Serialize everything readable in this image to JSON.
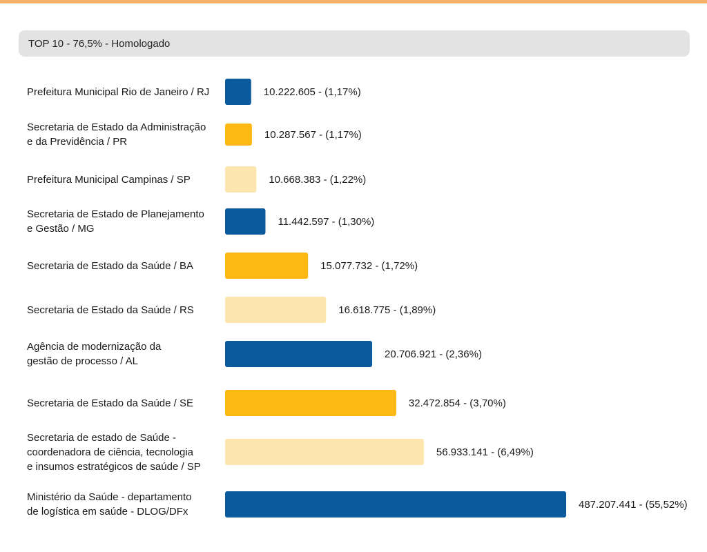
{
  "header": {
    "title": "TOP 10 - 76,5% - Homologado"
  },
  "colors": {
    "blue": "#0b5a9e",
    "gold": "#fdb813",
    "pale": "#fde6ae",
    "accent_rule": "#f6b26b"
  },
  "chart_data": {
    "type": "bar",
    "orientation": "horizontal",
    "title": "TOP 10 - 76,5% - Homologado",
    "categories": [
      "Prefeitura Municipal Rio de Janeiro / RJ",
      "Secretaria de Estado da Administração\ne da Previdência / PR",
      "Prefeitura Municipal Campinas / SP",
      "Secretaria de Estado de Planejamento\ne Gestão / MG",
      "Secretaria de Estado da Saúde / BA",
      "Secretaria de Estado da Saúde / RS",
      "Agência de modernização da\ngestão de processo / AL",
      "Secretaria de Estado da Saúde / SE",
      "Secretaria de estado de Saúde -\ncoordenadora de ciência, tecnologia\ne insumos estratégicos de saúde / SP",
      "Ministério da Saúde - departamento\nde logística em saúde - DLOG/DFx"
    ],
    "values": [
      10222605,
      10287567,
      10668383,
      11442597,
      15077732,
      16618775,
      20706921,
      32472854,
      56933141,
      487207441
    ],
    "percentages": [
      "1,17%",
      "1,17%",
      "1,22%",
      "1,30%",
      "1,72%",
      "1,89%",
      "2,36%",
      "3,70%",
      "6,49%",
      "55,52%"
    ],
    "value_labels": [
      "10.222.605 - (1,17%)",
      "10.287.567 - (1,17%)",
      "10.668.383 - (1,22%)",
      "11.442.597 - (1,30%)",
      "15.077.732 - (1,72%)",
      "16.618.775 - (1,89%)",
      "20.706.921 - (2,36%)",
      "32.472.854 - (3,70%)",
      "56.933.141 - (6,49%)",
      "487.207.441 - (55,52%)"
    ],
    "bar_colors": [
      "#0b5a9e",
      "#fdb813",
      "#fde6ae",
      "#0b5a9e",
      "#fdb813",
      "#fde6ae",
      "#0b5a9e",
      "#fdb813",
      "#fde6ae",
      "#0b5a9e"
    ],
    "grid": false,
    "legend": "none"
  }
}
